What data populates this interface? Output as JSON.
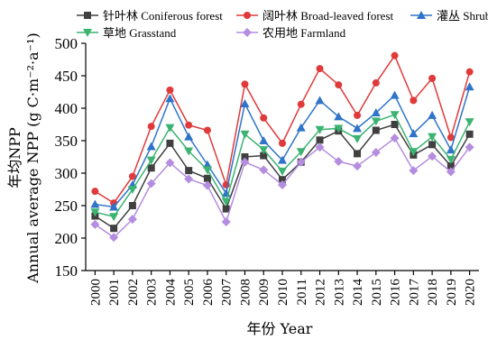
{
  "chart_data": {
    "type": "line",
    "xlabel": "年份 Year",
    "ylabel_line1": "年均NPP",
    "ylabel_line2": "Annual average NPP (g C·m⁻²·a⁻¹)",
    "ylim": [
      150,
      500
    ],
    "yticks": [
      150,
      200,
      250,
      300,
      350,
      400,
      450,
      500
    ],
    "x": [
      "2000",
      "2001",
      "2002",
      "2003",
      "2004",
      "2005",
      "2006",
      "2007",
      "2008",
      "2009",
      "2010",
      "2011",
      "2012",
      "2013",
      "2014",
      "2015",
      "2016",
      "2017",
      "2018",
      "2019",
      "2020"
    ],
    "grid": false,
    "legend_position": "top",
    "series": [
      {
        "name": "针叶林 Coniferous forest",
        "color": "#404040",
        "marker": "square",
        "values": [
          234,
          215,
          250,
          308,
          346,
          304,
          292,
          245,
          325,
          327,
          290,
          317,
          351,
          365,
          330,
          366,
          375,
          328,
          344,
          311,
          360
        ]
      },
      {
        "name": "阔叶林 Broad-leaved forest",
        "color": "#e03a3a",
        "marker": "circle",
        "values": [
          272,
          254,
          295,
          372,
          428,
          374,
          366,
          282,
          437,
          385,
          346,
          406,
          461,
          436,
          389,
          439,
          481,
          412,
          446,
          355,
          456
        ]
      },
      {
        "name": "灌丛 Shrub",
        "color": "#2f74c8",
        "marker": "triangle-up",
        "values": [
          252,
          248,
          282,
          341,
          415,
          356,
          313,
          269,
          407,
          350,
          320,
          370,
          412,
          387,
          369,
          393,
          420,
          361,
          389,
          336,
          433
        ]
      },
      {
        "name": "草地 Grasstand",
        "color": "#3cb371",
        "marker": "triangle-down",
        "values": [
          240,
          233,
          275,
          320,
          370,
          334,
          305,
          256,
          360,
          336,
          303,
          333,
          367,
          369,
          353,
          380,
          390,
          333,
          356,
          321,
          379
        ]
      },
      {
        "name": "农用地 Farmland",
        "color": "#b48de0",
        "marker": "diamond",
        "values": [
          221,
          201,
          229,
          284,
          316,
          291,
          281,
          225,
          317,
          305,
          282,
          317,
          340,
          318,
          311,
          332,
          354,
          304,
          326,
          302,
          340
        ]
      }
    ]
  }
}
